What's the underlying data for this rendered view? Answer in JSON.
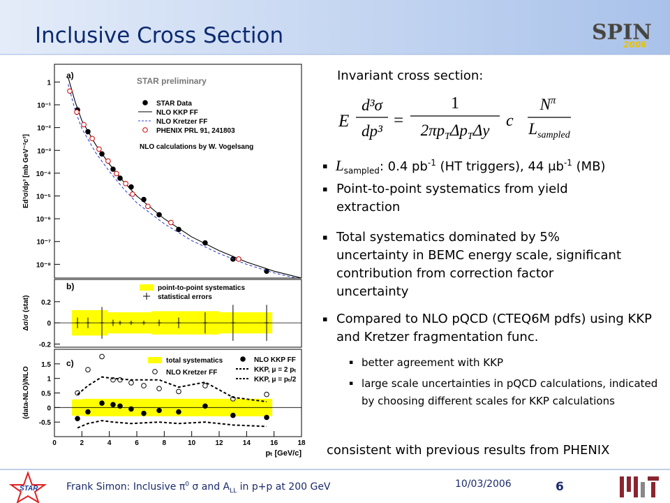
{
  "header": {
    "title": "Inclusive Cross Section",
    "logo": {
      "name": "SPIN",
      "year": "2006"
    }
  },
  "figure": {
    "x_label": "pₜ [GeV/c]",
    "xlim": [
      0,
      18
    ],
    "xticks": [
      0,
      2,
      4,
      6,
      8,
      10,
      12,
      14,
      16,
      18
    ],
    "panel_a": {
      "label": "a)",
      "title": "STAR preliminary",
      "y_label": "Ed³σ/dp³ [mb GeV⁻²c³]",
      "log_y": true,
      "ylim": [
        2.5e-09,
        6
      ],
      "yticks": [
        1,
        {
          "value": 0.1,
          "label": "10⁻¹"
        },
        {
          "value": 0.01,
          "label": "10⁻²"
        },
        {
          "value": 0.001,
          "label": "10⁻³"
        },
        {
          "value": 0.0001,
          "label": "10⁻⁴"
        },
        {
          "value": 1e-05,
          "label": "10⁻⁵"
        },
        {
          "value": 1e-06,
          "label": "10⁻⁶"
        },
        {
          "value": 1e-07,
          "label": "10⁻⁷"
        },
        {
          "value": 1e-08,
          "label": "10⁻⁸"
        }
      ],
      "note": "NLO calculations by W. Vogelsang",
      "series": [
        {
          "name": "STAR Data",
          "color": "#000000",
          "style": "filled",
          "x": [
            1.68,
            2.44,
            3.46,
            4.27,
            4.78,
            5.59,
            6.51,
            7.63,
            9.05,
            10.98,
            13.01,
            15.46
          ],
          "values": [
            0.06,
            0.0066,
            0.0007,
            0.00015,
            6e-05,
            2.5e-05,
            7e-06,
            1.5e-06,
            3.4e-07,
            8.7e-08,
            1.7e-08,
            5e-09
          ]
        },
        {
          "name": "NLO KKP FF",
          "color": "#000000",
          "style": "solid",
          "x": [
            1,
            1.5,
            2,
            3,
            4,
            5,
            6,
            8,
            10,
            12,
            14,
            16,
            18
          ],
          "values": [
            1.6,
            0.14,
            0.02,
            0.0018,
            0.00025,
            4.5e-05,
            1e-05,
            1e-06,
            1.6e-07,
            4e-08,
            1.26e-08,
            5e-09,
            2.5e-09
          ]
        },
        {
          "name": "NLO Kretzer FF",
          "color": "#3344cc",
          "style": "dashed",
          "x": [
            1,
            1.5,
            2,
            3,
            4,
            5,
            6,
            8,
            10,
            12,
            14,
            16,
            18
          ],
          "values": [
            0.8,
            0.06,
            0.009,
            0.0008,
            0.00012,
            2.2e-05,
            5e-06,
            6e-07,
            1.1e-07,
            3e-08,
            1e-08,
            4.2e-09,
            2.2e-09
          ]
        },
        {
          "name": "PHENIX PRL 91, 241803",
          "color": "#cc0000",
          "style": "open",
          "x": [
            1.12,
            1.63,
            2.14,
            2.75,
            3.25,
            3.91,
            4.52,
            5.19,
            5.69,
            6.81,
            8.49,
            13.42
          ],
          "values": [
            0.4,
            0.048,
            0.0135,
            0.0033,
            0.00114,
            0.00034,
            9.6e-05,
            3.5e-05,
            1.2e-05,
            3.5e-06,
            6.8e-07,
            1.7e-08
          ]
        }
      ]
    },
    "panel_b": {
      "label": "b)",
      "y_label": "Δσ/σ (stat)",
      "ylim": [
        -0.23,
        0.41
      ],
      "yticks": [
        -0.2,
        0,
        0.2
      ],
      "series": [
        {
          "name": "point-to-point systematics",
          "color": "#ffff00",
          "style": "band",
          "x": [
            1.68,
            2.44,
            3.46,
            4.27,
            4.78,
            5.59,
            6.51,
            7.63,
            9.05,
            10.98,
            13.01,
            15.46
          ],
          "values": [
            0.12,
            0.12,
            0.12,
            0.1,
            0.1,
            0.1,
            0.1,
            0.11,
            0.11,
            0.11,
            0.1,
            0.1
          ]
        },
        {
          "name": "statistical errors",
          "color": "#000000",
          "style": "errorbar",
          "x": [
            1.68,
            2.44,
            3.46,
            4.27,
            4.78,
            5.59,
            6.51,
            7.63,
            9.05,
            10.98,
            13.01,
            15.46
          ],
          "values": [
            0,
            0,
            0,
            0,
            0,
            0,
            0,
            0,
            0,
            0,
            0,
            0
          ],
          "errors": [
            0.05,
            0.05,
            0.15,
            0.03,
            0.02,
            0.02,
            0.02,
            0.03,
            0.05,
            0.1,
            0.17,
            0.17
          ]
        }
      ]
    },
    "panel_c": {
      "label": "c)",
      "y_label": "(data-NLO)/NLO",
      "ylim": [
        -1,
        2
      ],
      "yticks": [
        -0.5,
        0,
        0.5,
        1,
        1.5
      ],
      "series": [
        {
          "name": "total systematics",
          "color": "#ffff00",
          "style": "band",
          "x": [
            1.68,
            2.44,
            3.46,
            4.27,
            4.78,
            5.59,
            6.51,
            7.63,
            9.05,
            10.98,
            13.01,
            15.46
          ],
          "values": [
            0.28,
            0.3,
            0.3,
            0.3,
            0.3,
            0.3,
            0.3,
            0.3,
            0.3,
            0.3,
            0.3,
            0.3
          ]
        },
        {
          "name": "NLO KKP FF",
          "color": "#000000",
          "style": "filled",
          "x": [
            1.68,
            2.44,
            3.46,
            4.27,
            4.78,
            5.59,
            6.51,
            7.63,
            9.05,
            10.98,
            13.01,
            15.46
          ],
          "values": [
            -0.38,
            -0.15,
            0.15,
            0.1,
            0.05,
            -0.05,
            -0.2,
            -0.1,
            -0.15,
            0.05,
            -0.27,
            -0.34
          ]
        },
        {
          "name": "NLO Kretzer FF",
          "color": "#000000",
          "style": "open",
          "x": [
            1.68,
            2.44,
            3.46,
            4.27,
            4.78,
            5.59,
            6.51,
            7.63,
            9.05,
            10.98,
            13.01,
            15.46
          ],
          "values": [
            0.5,
            1.3,
            1.75,
            0.95,
            0.95,
            0.85,
            0.75,
            0.65,
            0.55,
            0.75,
            0.3,
            0.45
          ]
        },
        {
          "name": "KKP, μ = 2 pₜ",
          "color": "#000000",
          "style": "dotted",
          "x": [
            1.68,
            2.44,
            3.46,
            4.27,
            5.59,
            7.63,
            9.05,
            10.98,
            13.01,
            15.46
          ],
          "values": [
            0.45,
            0.75,
            1.05,
            1.0,
            0.95,
            0.95,
            0.7,
            0.87,
            0.35,
            0.2
          ]
        },
        {
          "name": "KKP, μ = pₜ/2",
          "color": "#000000",
          "style": "dotted",
          "x": [
            1.68,
            2.44,
            3.46,
            4.27,
            5.59,
            7.63,
            9.05,
            10.98,
            13.01,
            15.46
          ],
          "values": [
            -0.7,
            -0.55,
            -0.45,
            -0.5,
            -0.55,
            -0.5,
            -0.55,
            -0.5,
            -0.6,
            -0.65
          ]
        }
      ]
    }
  },
  "text": {
    "heading": "Invariant cross section:",
    "formula": {
      "lhs": [
        "E",
        "d³σ",
        "dp³"
      ],
      "eq": "=",
      "num1": "1",
      "den1": [
        "2πp",
        "T",
        "Δp",
        "T",
        "Δy"
      ],
      "c": "c",
      "num2": [
        "N",
        "π"
      ],
      "den2": [
        "L",
        "sampled"
      ]
    },
    "sampled_bullet": [
      "L",
      "sampled",
      ": 0.4 pb",
      "-1",
      " (HT triggers), 44 μb",
      "-1",
      " (MB)"
    ],
    "bullets": [
      "Point-to-point systematics from yield extraction",
      "Total systematics dominated by 5% uncertainty in BEMC energy scale, significant contribution from correction factor uncertainty",
      "Compared to NLO pQCD (CTEQ6M pdfs) using KKP and Kretzer fragmentation func."
    ],
    "sub_bullets": [
      "better agreement with KKP",
      "large scale uncertainties in pQCD calculations, indicated by choosing different scales for KKP calculations"
    ],
    "conclusion": "consistent with previous results from PHENIX"
  },
  "footer": {
    "caption": [
      "Frank Simon: Inclusive π",
      "0",
      " σ and A",
      "LL",
      " in p+p at 200 GeV"
    ],
    "date": "10/03/2006",
    "page": "6",
    "star_logo": "STAR"
  }
}
